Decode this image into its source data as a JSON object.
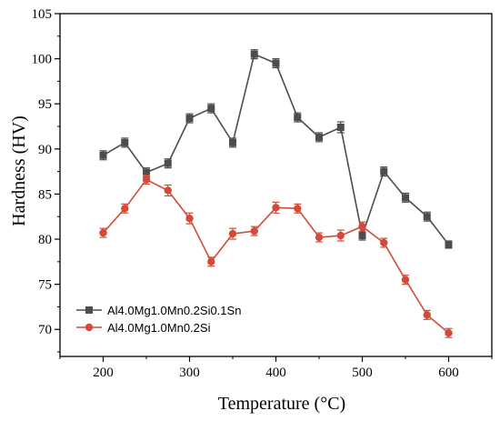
{
  "chart_data": {
    "type": "line",
    "title": "",
    "xlabel": "Temperature (°C)",
    "ylabel": "Hardness (HV)",
    "xlim": [
      150,
      650
    ],
    "ylim": [
      67,
      105
    ],
    "x_ticks": [
      200,
      300,
      400,
      500,
      600
    ],
    "y_ticks": [
      70,
      75,
      80,
      85,
      90,
      95,
      100,
      105
    ],
    "legend_position": "bottom-left",
    "grid": false,
    "x": [
      200,
      225,
      250,
      275,
      300,
      325,
      350,
      375,
      400,
      425,
      450,
      475,
      500,
      525,
      550,
      575,
      600
    ],
    "series": [
      {
        "name": "Al4.0Mg1.0Mn0.2Si0.1Sn",
        "color": "#4d4d4d",
        "marker": "square",
        "values": [
          89.3,
          90.7,
          87.4,
          88.4,
          93.4,
          94.5,
          90.7,
          100.5,
          99.5,
          93.5,
          91.3,
          92.4,
          80.4,
          87.5,
          84.6,
          82.5,
          79.4
        ],
        "errors": [
          0.5,
          0.5,
          0.5,
          0.5,
          0.5,
          0.5,
          0.5,
          0.5,
          0.5,
          0.5,
          0.5,
          0.6,
          0.5,
          0.5,
          0.5,
          0.5,
          0.4
        ]
      },
      {
        "name": "Al4.0Mg1.0Mn0.2Si",
        "color": "#d14b3a",
        "marker": "circle",
        "values": [
          80.7,
          83.4,
          86.6,
          85.4,
          82.3,
          77.5,
          80.6,
          80.9,
          83.5,
          83.4,
          80.2,
          80.4,
          81.4,
          79.6,
          75.5,
          71.6,
          69.6
        ],
        "errors": [
          0.5,
          0.5,
          0.5,
          0.6,
          0.6,
          0.5,
          0.6,
          0.5,
          0.6,
          0.5,
          0.5,
          0.6,
          0.5,
          0.5,
          0.5,
          0.5,
          0.5
        ]
      }
    ]
  }
}
